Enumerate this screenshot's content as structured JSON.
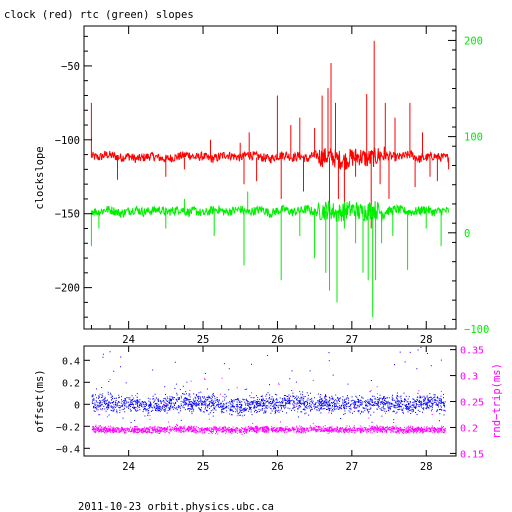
{
  "title": "clock (red) rtc (green) slopes",
  "footer": "2011-10-23 orbit.physics.ubc.ca",
  "colors": {
    "clock": "#ff0000",
    "rtc": "#00ee00",
    "offset": "#0000ff",
    "rndtrip": "#ff00ff",
    "axis": "#000000",
    "right_axis_top": "#00ee00",
    "right_axis_bottom": "#ff00ff"
  },
  "chart_data": [
    {
      "type": "line",
      "title": "clock (red) rtc (green) slopes",
      "xlabel": "",
      "xlim": [
        23.4,
        28.4
      ],
      "x_ticks": [
        24,
        25,
        26,
        27,
        28
      ],
      "x_tick_labels": [
        "24",
        "25",
        "26",
        "27",
        "28"
      ],
      "ylabel": "clockslope",
      "ylim": [
        -228,
        -23
      ],
      "y_ticks": [
        -50,
        -100,
        -150,
        -200
      ],
      "y_tick_labels": [
        "−50",
        "−100",
        "−150",
        "−200"
      ],
      "y2lim": [
        -100,
        215
      ],
      "y2_ticks": [
        200,
        100,
        0,
        -100
      ],
      "y2_tick_labels": [
        "200",
        "100",
        "0",
        "−100"
      ],
      "grid": false,
      "series": [
        {
          "name": "clock",
          "axis": "left",
          "baseline": -112,
          "x": [
            23.5,
            23.6,
            23.7,
            23.8,
            23.9,
            24.0,
            24.1,
            24.2,
            24.3,
            24.4,
            24.5,
            24.6,
            24.7,
            24.8,
            24.9,
            25.0,
            25.1,
            25.2,
            25.3,
            25.4,
            25.5,
            25.6,
            25.7,
            25.8,
            25.9,
            26.0,
            26.1,
            26.2,
            26.3,
            26.4,
            26.5,
            26.6,
            26.7,
            26.8,
            26.9,
            27.0,
            27.1,
            27.2,
            27.3,
            27.4,
            27.5,
            27.6,
            27.7,
            27.8,
            27.9,
            28.0,
            28.1,
            28.2,
            28.3
          ],
          "y": [
            -111,
            -112,
            -110,
            -111,
            -112,
            -111,
            -113,
            -112,
            -111,
            -112,
            -113,
            -112,
            -111,
            -110,
            -112,
            -111,
            -113,
            -112,
            -110,
            -111,
            -112,
            -110,
            -111,
            -112,
            -113,
            -111,
            -110,
            -112,
            -111,
            -113,
            -110,
            -112,
            -111,
            -113,
            -114,
            -112,
            -111,
            -113,
            -112,
            -110,
            -111,
            -112,
            -111,
            -110,
            -113,
            -112,
            -111,
            -112,
            -112
          ],
          "spikes": [
            [
              23.5,
              -75
            ],
            [
              23.85,
              -127
            ],
            [
              24.5,
              -125
            ],
            [
              24.75,
              -120
            ],
            [
              25.1,
              -100
            ],
            [
              25.5,
              -102
            ],
            [
              25.55,
              -130
            ],
            [
              25.62,
              -95
            ],
            [
              25.72,
              -128
            ],
            [
              26.0,
              -70
            ],
            [
              26.05,
              -140
            ],
            [
              26.18,
              -90
            ],
            [
              26.3,
              -85
            ],
            [
              26.35,
              -135
            ],
            [
              26.5,
              -92
            ],
            [
              26.6,
              -70
            ],
            [
              26.68,
              -65
            ],
            [
              26.7,
              -175
            ],
            [
              26.72,
              -48
            ],
            [
              26.78,
              -75
            ],
            [
              26.82,
              -140
            ],
            [
              26.9,
              -150
            ],
            [
              27.05,
              -125
            ],
            [
              27.2,
              -69
            ],
            [
              27.26,
              -160
            ],
            [
              27.3,
              -33
            ],
            [
              27.38,
              -130
            ],
            [
              27.45,
              -75
            ],
            [
              27.5,
              -140
            ],
            [
              27.58,
              -85
            ],
            [
              27.78,
              -75
            ],
            [
              27.85,
              -132
            ],
            [
              27.95,
              -95
            ],
            [
              28.05,
              -125
            ],
            [
              28.15,
              -128
            ],
            [
              28.3,
              -120
            ]
          ]
        },
        {
          "name": "rtc",
          "axis": "left",
          "baseline": -148,
          "x": [
            23.5,
            23.6,
            23.7,
            23.8,
            23.9,
            24.0,
            24.1,
            24.2,
            24.3,
            24.4,
            24.5,
            24.6,
            24.7,
            24.8,
            24.9,
            25.0,
            25.1,
            25.2,
            25.3,
            25.4,
            25.5,
            25.6,
            25.7,
            25.8,
            25.9,
            26.0,
            26.1,
            26.2,
            26.3,
            26.4,
            26.5,
            26.6,
            26.7,
            26.8,
            26.9,
            27.0,
            27.1,
            27.2,
            27.3,
            27.4,
            27.5,
            27.6,
            27.7,
            27.8,
            27.9,
            28.0,
            28.1,
            28.2,
            28.3
          ],
          "y": [
            -148,
            -149,
            -147,
            -148,
            -150,
            -148,
            -147,
            -149,
            -148,
            -147,
            -149,
            -148,
            -147,
            -149,
            -148,
            -150,
            -148,
            -147,
            -149,
            -148,
            -147,
            -149,
            -148,
            -147,
            -150,
            -148,
            -147,
            -149,
            -148,
            -147,
            -149,
            -148,
            -147,
            -150,
            -148,
            -147,
            -149,
            -148,
            -147,
            -149,
            -148,
            -147,
            -148,
            -149,
            -148,
            -147,
            -149,
            -148,
            -148
          ],
          "spikes": [
            [
              23.5,
              -172
            ],
            [
              23.6,
              -160
            ],
            [
              24.5,
              -160
            ],
            [
              24.75,
              -140
            ],
            [
              25.15,
              -165
            ],
            [
              25.55,
              -185
            ],
            [
              25.6,
              -135
            ],
            [
              26.05,
              -195
            ],
            [
              26.3,
              -165
            ],
            [
              26.5,
              -180
            ],
            [
              26.65,
              -190
            ],
            [
              26.7,
              -202
            ],
            [
              26.8,
              -210
            ],
            [
              26.9,
              -160
            ],
            [
              27.05,
              -170
            ],
            [
              27.15,
              -190
            ],
            [
              27.22,
              -195
            ],
            [
              27.28,
              -220
            ],
            [
              27.32,
              -195
            ],
            [
              27.4,
              -170
            ],
            [
              27.55,
              -165
            ],
            [
              27.75,
              -188
            ],
            [
              28.0,
              -160
            ],
            [
              28.2,
              -172
            ]
          ]
        }
      ]
    },
    {
      "type": "scatter",
      "title": "",
      "xlabel": "",
      "xlim": [
        23.4,
        28.4
      ],
      "x_ticks": [
        24,
        25,
        26,
        27,
        28
      ],
      "x_tick_labels": [
        "24",
        "25",
        "26",
        "27",
        "28"
      ],
      "ylabel": "offset(ms)",
      "ylim": [
        -0.47,
        0.53
      ],
      "y_ticks": [
        0.4,
        0.2,
        0,
        -0.2,
        -0.4
      ],
      "y_tick_labels": [
        "0.4",
        "0.2",
        "0",
        "−0.2",
        "−0.4"
      ],
      "y2label": "rnd−trip(ms)",
      "y2lim": [
        0.145,
        0.357
      ],
      "y2_ticks": [
        0.35,
        0.3,
        0.25,
        0.2,
        0.15
      ],
      "y2_tick_labels": [
        "0.35",
        "0.3",
        "0.25",
        "0.2",
        "0.15"
      ],
      "grid": false,
      "series": [
        {
          "name": "offset",
          "axis": "left",
          "x": [
            23.5,
            23.75,
            24.0,
            24.25,
            24.5,
            24.75,
            25.0,
            25.25,
            25.5,
            25.75,
            26.0,
            26.25,
            26.5,
            26.75,
            27.0,
            27.25,
            27.5,
            27.75,
            28.0,
            28.25
          ],
          "y": [
            0.02,
            0.0,
            0.01,
            -0.01,
            0.0,
            0.02,
            0.01,
            0.0,
            -0.02,
            0.01,
            0.0,
            0.02,
            0.0,
            0.01,
            -0.01,
            0.0,
            0.01,
            0.0,
            0.02,
            0.0
          ],
          "spread": 0.12
        },
        {
          "name": "rnd-trip",
          "axis": "right",
          "x": [
            23.5,
            23.75,
            24.0,
            24.25,
            24.5,
            24.75,
            25.0,
            25.25,
            25.5,
            25.75,
            26.0,
            26.25,
            26.5,
            26.75,
            27.0,
            27.25,
            27.5,
            27.75,
            28.0,
            28.25
          ],
          "y": [
            0.197,
            0.195,
            0.196,
            0.194,
            0.196,
            0.197,
            0.195,
            0.196,
            0.194,
            0.197,
            0.196,
            0.195,
            0.197,
            0.196,
            0.195,
            0.197,
            0.196,
            0.195,
            0.196,
            0.195
          ],
          "spread": 0.009
        }
      ]
    }
  ]
}
